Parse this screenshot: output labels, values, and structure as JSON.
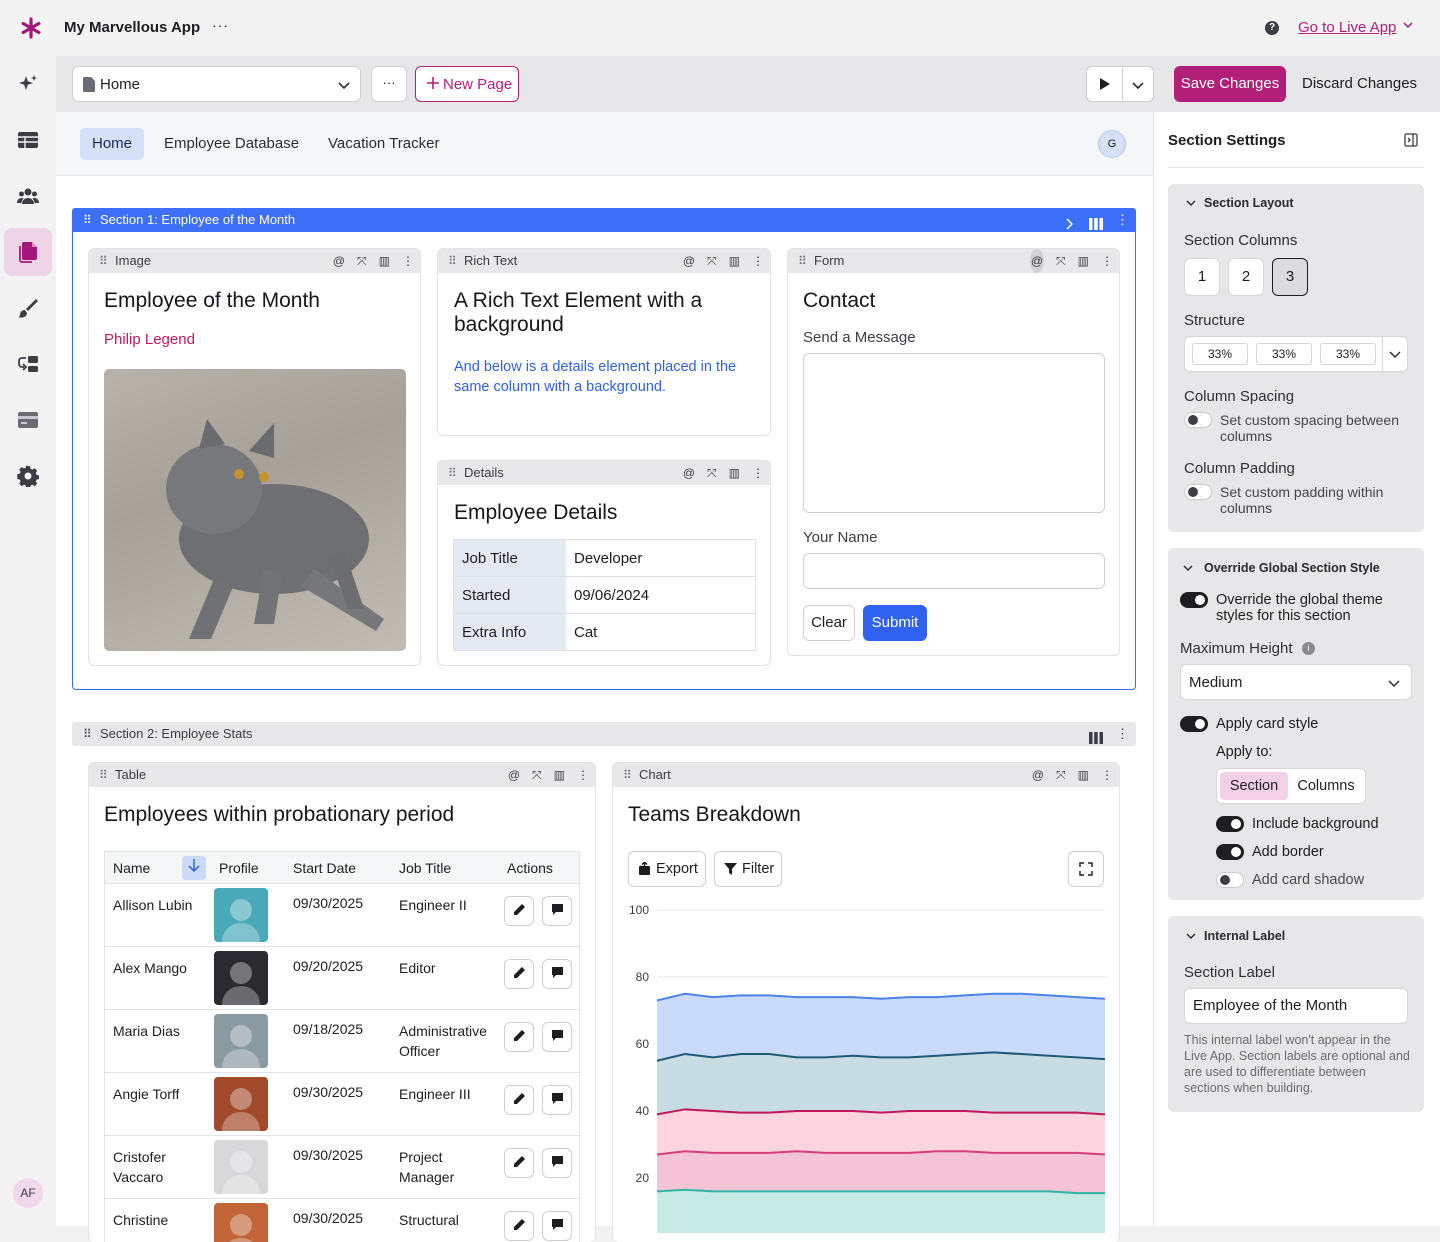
{
  "app": {
    "title": "My Marvellous App",
    "more": "···",
    "go_live": "Go to Live App",
    "avatar_initials": "AF"
  },
  "toolbar": {
    "page_selected": "Home",
    "more": "···",
    "new_page": "New Page",
    "save": "Save Changes",
    "discard": "Discard Changes"
  },
  "tabs": [
    {
      "label": "Home"
    },
    {
      "label": "Employee Database"
    },
    {
      "label": "Vacation Tracker"
    }
  ],
  "user_initial": "G",
  "section1": {
    "label": "Section 1: Employee of the Month",
    "image_card": {
      "type": "Image",
      "title": "Employee of the Month",
      "subtitle": "Philip Legend"
    },
    "richtext_card": {
      "type": "Rich Text",
      "title": "A Rich Text Element with a background",
      "body": "And below is a details element placed in the same column with a background."
    },
    "details_card": {
      "type": "Details",
      "title": "Employee Details",
      "rows": [
        {
          "label": "Job Title",
          "value": "Developer"
        },
        {
          "label": "Started",
          "value": "09/06/2024"
        },
        {
          "label": "Extra Info",
          "value": "Cat"
        }
      ]
    },
    "form_card": {
      "type": "Form",
      "title": "Contact",
      "message_label": "Send a Message",
      "name_label": "Your Name",
      "clear": "Clear",
      "submit": "Submit"
    }
  },
  "section2": {
    "label": "Section 2: Employee Stats",
    "table_card": {
      "type": "Table",
      "title": "Employees within probationary period",
      "columns": [
        "Name",
        "Profile",
        "Start Date",
        "Job Title",
        "Actions"
      ],
      "rows": [
        {
          "name": "Allison Lubin",
          "start": "09/30/2025",
          "job": "Engineer II"
        },
        {
          "name": "Alex Mango",
          "start": "09/20/2025",
          "job": "Editor"
        },
        {
          "name": "Maria Dias",
          "start": "09/18/2025",
          "job": "Administrative Officer"
        },
        {
          "name": "Angie Torff",
          "start": "09/30/2025",
          "job": "Engineer III"
        },
        {
          "name": "Cristofer Vaccaro",
          "start": "09/30/2025",
          "job": "Project Manager"
        },
        {
          "name": "Christine",
          "start": "09/30/2025",
          "job": "Structural"
        }
      ]
    },
    "chart_card": {
      "type": "Chart",
      "title": "Teams Breakdown",
      "export": "Export",
      "filter": "Filter"
    }
  },
  "chart_data": {
    "type": "area",
    "title": "Teams Breakdown",
    "xlabel": "",
    "ylabel": "",
    "ylim": [
      0,
      100
    ],
    "yticks": [
      20,
      40,
      60,
      80,
      100
    ],
    "grid": true,
    "x": [
      1,
      2,
      3,
      4,
      5,
      6,
      7,
      8,
      9,
      10,
      11,
      12,
      13,
      14,
      15,
      16,
      17
    ],
    "series": [
      {
        "values": [
          73,
          75,
          74,
          74.5,
          74.5,
          74,
          74,
          74,
          73.5,
          74,
          74,
          74.5,
          75,
          75,
          74.5,
          74,
          73.5
        ],
        "color": "#4a84e8"
      },
      {
        "values": [
          55,
          57,
          56,
          57,
          57,
          56,
          56,
          56.5,
          56,
          56,
          56.5,
          57,
          57.5,
          57,
          56.5,
          56,
          55.5
        ],
        "color": "#1e5a78"
      },
      {
        "values": [
          39,
          40.5,
          40,
          39.5,
          39.5,
          40,
          40,
          40,
          39.5,
          40,
          40,
          40,
          39.5,
          39.5,
          39.5,
          39.5,
          39
        ],
        "color": "#c2185b"
      },
      {
        "values": [
          27,
          28,
          27.5,
          27.5,
          27.5,
          28,
          27.5,
          27.5,
          27.5,
          27.5,
          28,
          28,
          27.5,
          27.5,
          27.5,
          27.5,
          27
        ],
        "color": "#d43f7a"
      },
      {
        "values": [
          16,
          16.5,
          16,
          16,
          16,
          16,
          16,
          16,
          16,
          16,
          16,
          16,
          16,
          16,
          16,
          15.5,
          15.5
        ],
        "color": "#2fb5a3"
      }
    ],
    "fills": [
      "#c9dafa",
      "#c7dce3",
      "#fbd4dd",
      "#f5c3d6",
      "#c6ebe4"
    ]
  },
  "right_panel": {
    "title": "Section Settings",
    "layout": {
      "header": "Section Layout",
      "columns_label": "Section Columns",
      "column_options": [
        "1",
        "2",
        "3"
      ],
      "selected": "3",
      "structure_label": "Structure",
      "structure": [
        "33%",
        "33%",
        "33%"
      ],
      "spacing_label": "Column Spacing",
      "spacing_toggle": "Set custom spacing between columns",
      "padding_label": "Column Padding",
      "padding_toggle": "Set custom padding within columns"
    },
    "override": {
      "header": "Override Global Section Style",
      "override_toggle": "Override the global theme styles for this section",
      "max_height_label": "Maximum Height",
      "max_height_value": "Medium",
      "card_style": "Apply card style",
      "apply_to": "Apply to:",
      "apply_options": [
        "Section",
        "Columns"
      ],
      "include_bg": "Include background",
      "add_border": "Add border",
      "card_shadow": "Add card shadow"
    },
    "internal": {
      "header": "Internal Label",
      "label": "Section Label",
      "value": "Employee of the Month",
      "help": "This internal label won't appear in the Live App. Section labels are optional and are used to differentiate between sections when building."
    }
  }
}
